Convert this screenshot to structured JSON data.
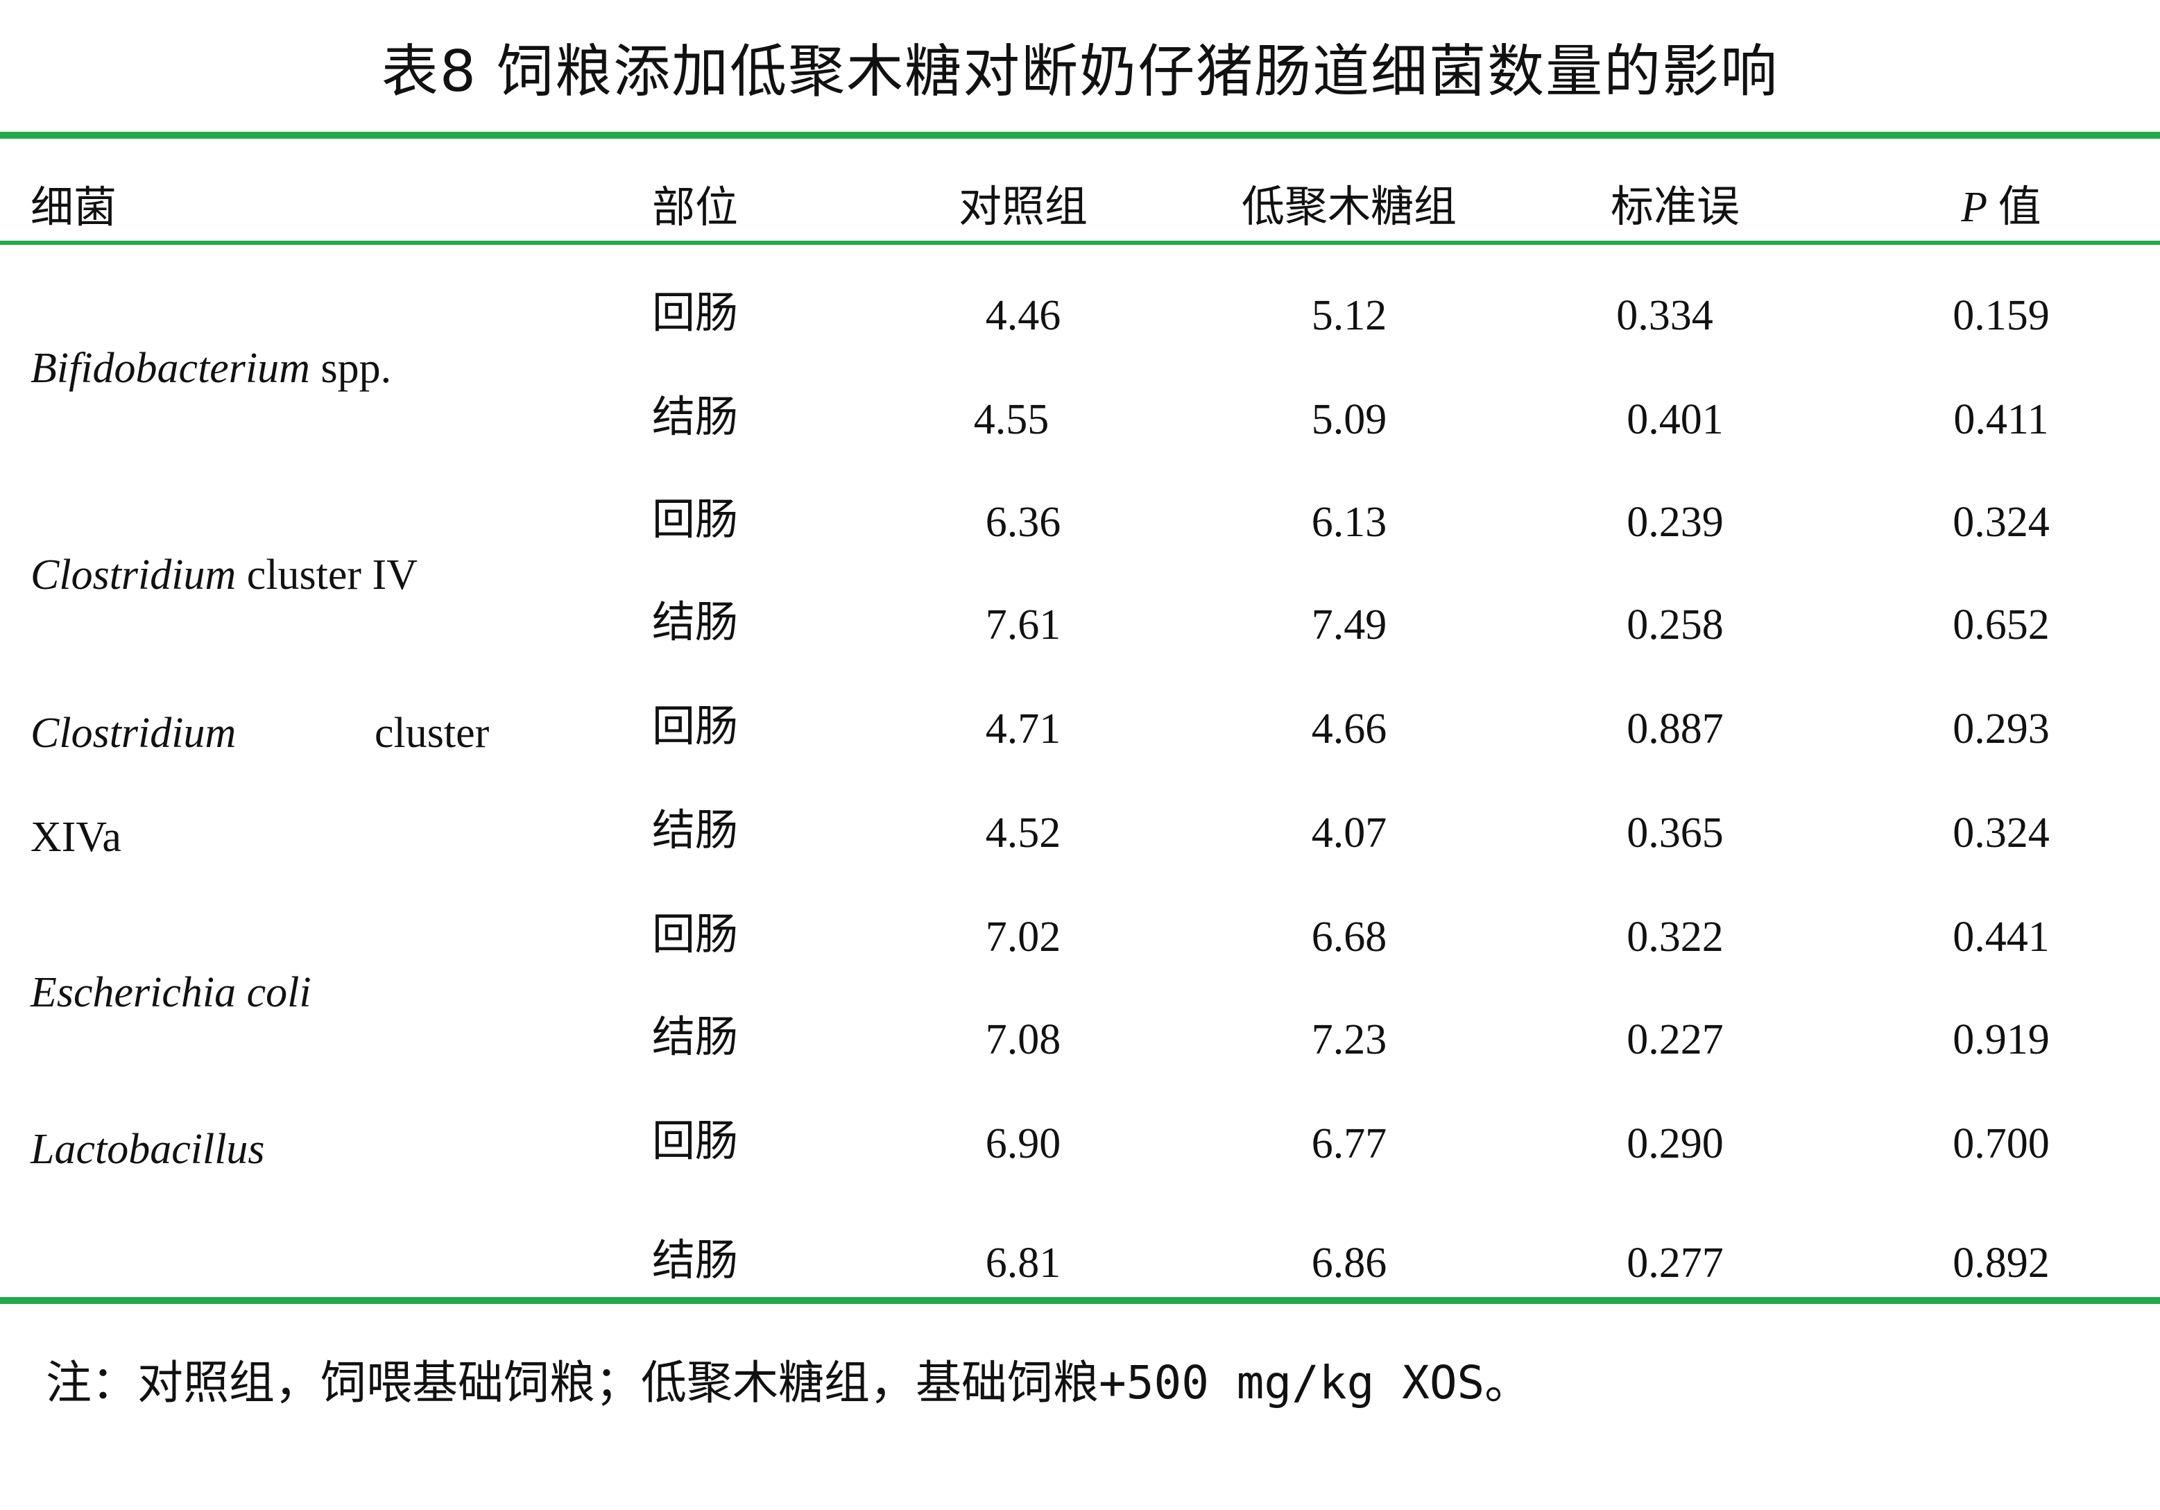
{
  "title": "表8 饲粮添加低聚木糖对断奶仔猪肠道细菌数量的影响",
  "header": {
    "bacteria": "细菌",
    "site": "部位",
    "control": "对照组",
    "xos": "低聚木糖组",
    "se": "标准误",
    "p_letter": "P",
    "p_suffix": " 值"
  },
  "groups": [
    {
      "name_italic": "Bifidobacterium",
      "name_rest": " spp."
    },
    {
      "name_italic": "Clostridium",
      "name_rest": " cluster IV"
    },
    {
      "name_italic": "Clostridium",
      "name_rest": "cluster",
      "name_line2": "XIVa"
    },
    {
      "name_italic": "Escherichia coli",
      "name_rest": ""
    },
    {
      "name_italic": "Lactobacillus",
      "name_rest": ""
    }
  ],
  "rows": [
    {
      "site": "回肠",
      "control": "4.46",
      "xos": "5.12",
      "se": "0.334",
      "p": "0.159"
    },
    {
      "site": "结肠",
      "control": "4.55",
      "xos": "5.09",
      "se": "0.401",
      "p": "0.411"
    },
    {
      "site": "回肠",
      "control": "6.36",
      "xos": "6.13",
      "se": "0.239",
      "p": "0.324"
    },
    {
      "site": "结肠",
      "control": "7.61",
      "xos": "7.49",
      "se": "0.258",
      "p": "0.652"
    },
    {
      "site": "回肠",
      "control": "4.71",
      "xos": "4.66",
      "se": "0.887",
      "p": "0.293"
    },
    {
      "site": "结肠",
      "control": "4.52",
      "xos": "4.07",
      "se": "0.365",
      "p": "0.324"
    },
    {
      "site": "回肠",
      "control": "7.02",
      "xos": "6.68",
      "se": "0.322",
      "p": "0.441"
    },
    {
      "site": "结肠",
      "control": "7.08",
      "xos": "7.23",
      "se": "0.227",
      "p": "0.919"
    },
    {
      "site": "回肠",
      "control": "6.90",
      "xos": "6.77",
      "se": "0.290",
      "p": "0.700"
    },
    {
      "site": "结肠",
      "control": "6.81",
      "xos": "6.86",
      "se": "0.277",
      "p": "0.892"
    }
  ],
  "note": "注：对照组，饲喂基础饲粮；低聚木糖组，基础饲粮+500 mg/kg XOS。",
  "colors": {
    "rule": "#22aa4a"
  }
}
